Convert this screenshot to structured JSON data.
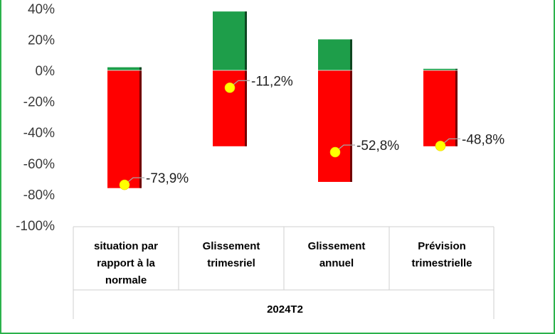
{
  "chart_data": {
    "type": "bar",
    "stacked": true,
    "xlabel": "2024T2",
    "categories": [
      [
        "situation par",
        "rapport à la",
        "normale"
      ],
      [
        "Glissement",
        "trimesriel"
      ],
      [
        "Glissement",
        "annuel"
      ],
      [
        "Prévision",
        "trimestrielle"
      ]
    ],
    "series": [
      {
        "color": "#1e9e4a",
        "values": [
          2,
          38,
          20,
          1
        ]
      },
      {
        "color": "#ff0000",
        "values": [
          -76,
          -49,
          -72,
          -49
        ]
      }
    ],
    "markers": {
      "color": "#ffff00",
      "values": [
        -73.9,
        -11.2,
        -52.8,
        -48.8
      ],
      "labels": [
        "-73,9%",
        "-11,2%",
        "-52,8%",
        "-48,8%"
      ]
    },
    "ylim": [
      -100,
      40
    ],
    "yticks": [
      40,
      20,
      0,
      -20,
      -40,
      -60,
      -80,
      -100
    ],
    "ytick_labels": [
      "40%",
      "20%",
      "0%",
      "-20%",
      "-40%",
      "-60%",
      "-80%",
      "-100%"
    ],
    "grid": false,
    "legend": "none"
  }
}
